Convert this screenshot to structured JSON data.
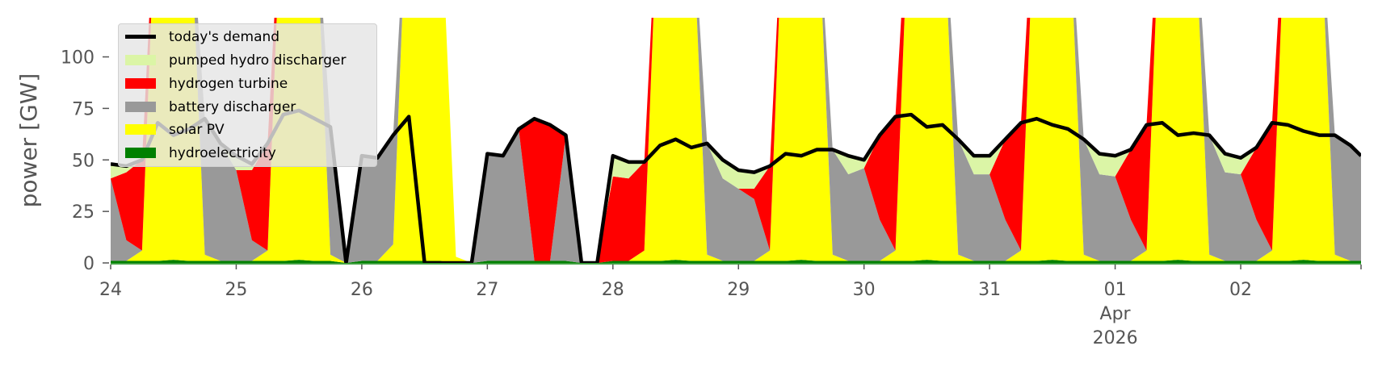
{
  "chart_data": {
    "type": "area",
    "title": "",
    "xlabel": "",
    "ylabel": "power [GW]",
    "ylim": [
      0,
      119
    ],
    "xlim_hours": [
      0,
      239
    ],
    "x_origin": "2026-03-24 00:00",
    "yticks": [
      0,
      25,
      50,
      75,
      100
    ],
    "xticks": [
      {
        "hour": 0,
        "label": "24"
      },
      {
        "hour": 24,
        "label": "25"
      },
      {
        "hour": 48,
        "label": "26"
      },
      {
        "hour": 72,
        "label": "27"
      },
      {
        "hour": 96,
        "label": "28"
      },
      {
        "hour": 120,
        "label": "29"
      },
      {
        "hour": 144,
        "label": "30"
      },
      {
        "hour": 168,
        "label": "31"
      },
      {
        "hour": 192,
        "label": "01",
        "sub1": "Apr",
        "sub2": "2026"
      },
      {
        "hour": 216,
        "label": "02"
      }
    ],
    "legend_position": "top-left",
    "x_hours": [
      0,
      3,
      6,
      9,
      12,
      15,
      18,
      21,
      24,
      27,
      30,
      33,
      36,
      39,
      42,
      45,
      48,
      51,
      54,
      57,
      60,
      63,
      66,
      69,
      72,
      75,
      78,
      81,
      84,
      87,
      90,
      93,
      96,
      99,
      102,
      105,
      108,
      111,
      114,
      117,
      120,
      123,
      126,
      129,
      132,
      135,
      138,
      141,
      144,
      147,
      150,
      153,
      156,
      159,
      162,
      165,
      168,
      171,
      174,
      177,
      180,
      183,
      186,
      189,
      192,
      195,
      198,
      201,
      204,
      207,
      210,
      213,
      216,
      219,
      222,
      225,
      228,
      231,
      234,
      237,
      239
    ],
    "stack_series": [
      {
        "name": "hydroelectricity",
        "color": "#008000",
        "values": [
          1,
          1,
          1,
          1,
          1.5,
          1,
          1,
          1,
          1,
          1,
          1,
          1,
          1.5,
          1,
          1,
          0,
          1,
          1,
          1,
          1,
          1,
          1,
          0,
          0,
          1,
          1,
          1,
          1,
          1,
          1,
          0,
          0,
          1,
          1,
          1,
          1,
          1.5,
          1,
          1,
          1,
          1,
          1,
          1,
          1,
          1.5,
          1,
          1,
          1,
          1,
          1,
          1,
          1,
          1.5,
          1,
          1,
          1,
          1,
          1,
          1,
          1,
          1.5,
          1,
          1,
          1,
          1,
          1,
          1,
          1,
          1.5,
          1,
          1,
          1,
          1,
          1,
          1,
          1,
          1.5,
          1,
          1,
          1,
          1
        ]
      },
      {
        "name": "solar PV",
        "color": "#ffff00",
        "values": [
          0,
          0,
          5,
          200,
          220,
          180,
          3,
          0,
          0,
          0,
          5,
          200,
          220,
          180,
          3,
          0,
          0,
          0,
          8,
          200,
          220,
          180,
          3,
          0,
          0,
          0,
          0,
          0,
          0,
          0,
          0,
          0,
          0,
          0,
          5,
          200,
          220,
          180,
          3,
          0,
          0,
          0,
          5,
          200,
          220,
          180,
          3,
          0,
          0,
          0,
          5,
          200,
          220,
          180,
          3,
          0,
          0,
          0,
          5,
          200,
          220,
          180,
          3,
          0,
          0,
          0,
          5,
          200,
          220,
          180,
          3,
          0,
          0,
          0,
          5,
          200,
          220,
          180,
          3,
          0,
          0
        ]
      },
      {
        "name": "battery discharger",
        "color": "#999999",
        "values": [
          40,
          10,
          0,
          0,
          0,
          0,
          66,
          57,
          44,
          10,
          0,
          0,
          0,
          0,
          62,
          0,
          50,
          50,
          53,
          0,
          0,
          0,
          0,
          0,
          52,
          51,
          64,
          0,
          0,
          61,
          0,
          0,
          0,
          0,
          0,
          0,
          0,
          0,
          54,
          40,
          35,
          30,
          0,
          0,
          0,
          0,
          51,
          42,
          45,
          20,
          0,
          0,
          0,
          0,
          56,
          42,
          42,
          20,
          0,
          0,
          0,
          0,
          56,
          42,
          41,
          20,
          0,
          0,
          0,
          0,
          58,
          43,
          42,
          20,
          0,
          0,
          0,
          0,
          58,
          55,
          51
        ]
      },
      {
        "name": "hydrogen turbine",
        "color": "#ff0000",
        "values": [
          0,
          33,
          44,
          0,
          0,
          0,
          0,
          0,
          0,
          34,
          52,
          0,
          0,
          0,
          0,
          0,
          0,
          0,
          0,
          0,
          0,
          0,
          0,
          0,
          0,
          0,
          0,
          69,
          66,
          0,
          0,
          0,
          41,
          40,
          43,
          0,
          0,
          0,
          0,
          0,
          0,
          5,
          41,
          0,
          0,
          0,
          0,
          0,
          0,
          41,
          65,
          0,
          0,
          0,
          0,
          0,
          0,
          39,
          62,
          0,
          0,
          0,
          0,
          0,
          0,
          34,
          61,
          0,
          0,
          0,
          0,
          0,
          0,
          35,
          62,
          0,
          0,
          0,
          0,
          0,
          0
        ]
      },
      {
        "name": "pumped hydro discharger",
        "color": "#dbf5a6",
        "values": [
          7,
          4,
          0,
          0,
          0,
          0,
          0,
          0,
          7,
          3,
          0,
          0,
          0,
          0,
          0,
          0,
          0,
          0,
          0,
          0,
          0,
          0,
          0,
          0,
          0,
          0,
          0,
          0,
          0,
          0,
          0,
          0,
          10,
          8,
          0,
          0,
          0,
          0,
          0,
          9,
          9,
          8,
          0,
          0,
          0,
          0,
          0,
          9,
          4,
          0,
          0,
          0,
          0,
          0,
          0,
          9,
          9,
          0,
          0,
          0,
          0,
          0,
          0,
          10,
          10,
          0,
          0,
          0,
          0,
          0,
          0,
          9,
          8,
          0,
          0,
          0,
          0,
          0,
          0,
          2,
          0
        ]
      }
    ],
    "line_series": {
      "name": "today's demand",
      "color": "#000000",
      "values": [
        48,
        47,
        50,
        68,
        62,
        65,
        70,
        58,
        52,
        48,
        58,
        72,
        74,
        70,
        66,
        0,
        52,
        51,
        62,
        71,
        0,
        0,
        0,
        0,
        53,
        52,
        65,
        70,
        67,
        62,
        0,
        0,
        52,
        49,
        49,
        57,
        60,
        56,
        58,
        50,
        45,
        44,
        47,
        53,
        52,
        55,
        55,
        52,
        50,
        62,
        71,
        72,
        66,
        67,
        60,
        52,
        52,
        60,
        68,
        70,
        67,
        65,
        60,
        53,
        52,
        55,
        67,
        68,
        62,
        63,
        62,
        53,
        51,
        56,
        68,
        67,
        64,
        62,
        62,
        57,
        52
      ]
    },
    "legend": [
      {
        "label": "today's demand",
        "color": "#000000",
        "kind": "line"
      },
      {
        "label": "pumped hydro discharger",
        "color": "#dbf5a6",
        "kind": "patch"
      },
      {
        "label": "hydrogen turbine",
        "color": "#ff0000",
        "kind": "patch"
      },
      {
        "label": "battery discharger",
        "color": "#999999",
        "kind": "patch"
      },
      {
        "label": "solar PV",
        "color": "#ffff00",
        "kind": "patch"
      },
      {
        "label": "hydroelectricity",
        "color": "#008000",
        "kind": "patch"
      }
    ]
  }
}
